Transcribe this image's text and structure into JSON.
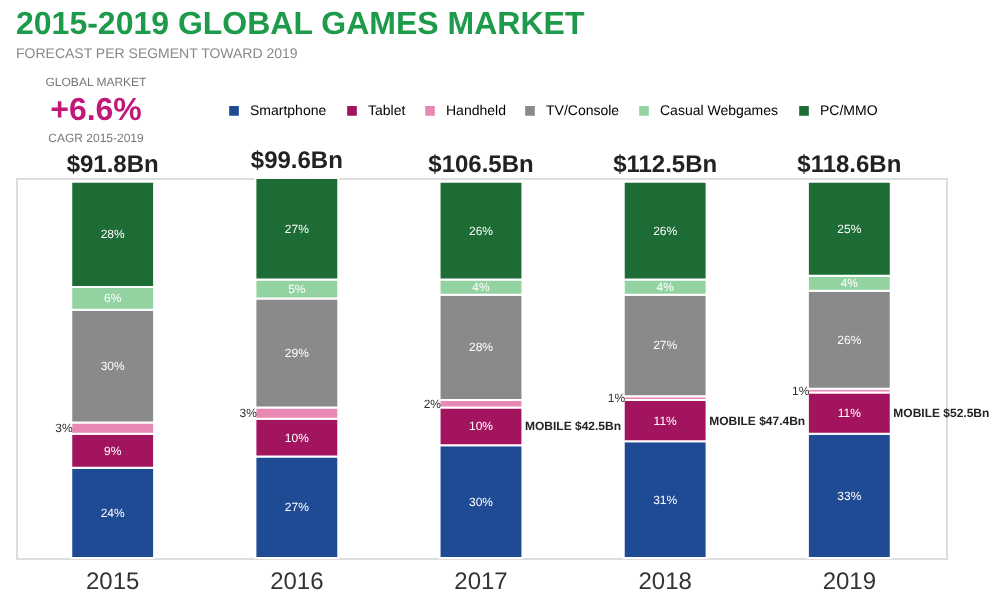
{
  "chart_data": {
    "type": "bar",
    "stacked": true,
    "title": "2015-2019 GLOBAL GAMES MARKET",
    "subtitle": "FORECAST PER SEGMENT TOWARD 2019",
    "categories": [
      "2015",
      "2016",
      "2017",
      "2018",
      "2019"
    ],
    "series": [
      {
        "name": "Smartphone",
        "color": "#1f4a94",
        "values": [
          24,
          27,
          30,
          31,
          33
        ],
        "value_labels": [
          "24%",
          "27%",
          "30%",
          "31%",
          "33%"
        ]
      },
      {
        "name": "Tablet",
        "color": "#a3145e",
        "values": [
          9,
          10,
          10,
          11,
          11
        ],
        "value_labels": [
          "9%",
          "10%",
          "10%",
          "11%",
          "11%"
        ]
      },
      {
        "name": "Handheld",
        "color": "#e889b5",
        "values": [
          3,
          3,
          2,
          1,
          1
        ],
        "value_labels": [
          "3%",
          "3%",
          "2%",
          "1%",
          "1%"
        ]
      },
      {
        "name": "TV/Console",
        "color": "#8a8a8a",
        "values": [
          30,
          29,
          28,
          27,
          26
        ],
        "value_labels": [
          "30%",
          "29%",
          "28%",
          "27%",
          "26%"
        ]
      },
      {
        "name": "Casual Webgames",
        "color": "#93d3a2",
        "values": [
          6,
          5,
          4,
          4,
          4
        ],
        "value_labels": [
          "6%",
          "5%",
          "4%",
          "4%",
          "4%"
        ]
      },
      {
        "name": "PC/MMO",
        "color": "#1d6b35",
        "values": [
          28,
          27,
          26,
          26,
          25
        ],
        "value_labels": [
          "28%",
          "27%",
          "26%",
          "26%",
          "25%"
        ]
      }
    ],
    "annotations": [
      "GLOBAL MARKET",
      "+6.6%",
      "CAGR 2015-2019",
      "$91.8Bn",
      "$99.6Bn",
      "$106.5Bn",
      "$112.5Bn",
      "$118.6Bn",
      "MOBILE $42.5Bn",
      "MOBILE $47.4Bn",
      "MOBILE $52.5Bn"
    ],
    "legend": "top right"
  }
}
